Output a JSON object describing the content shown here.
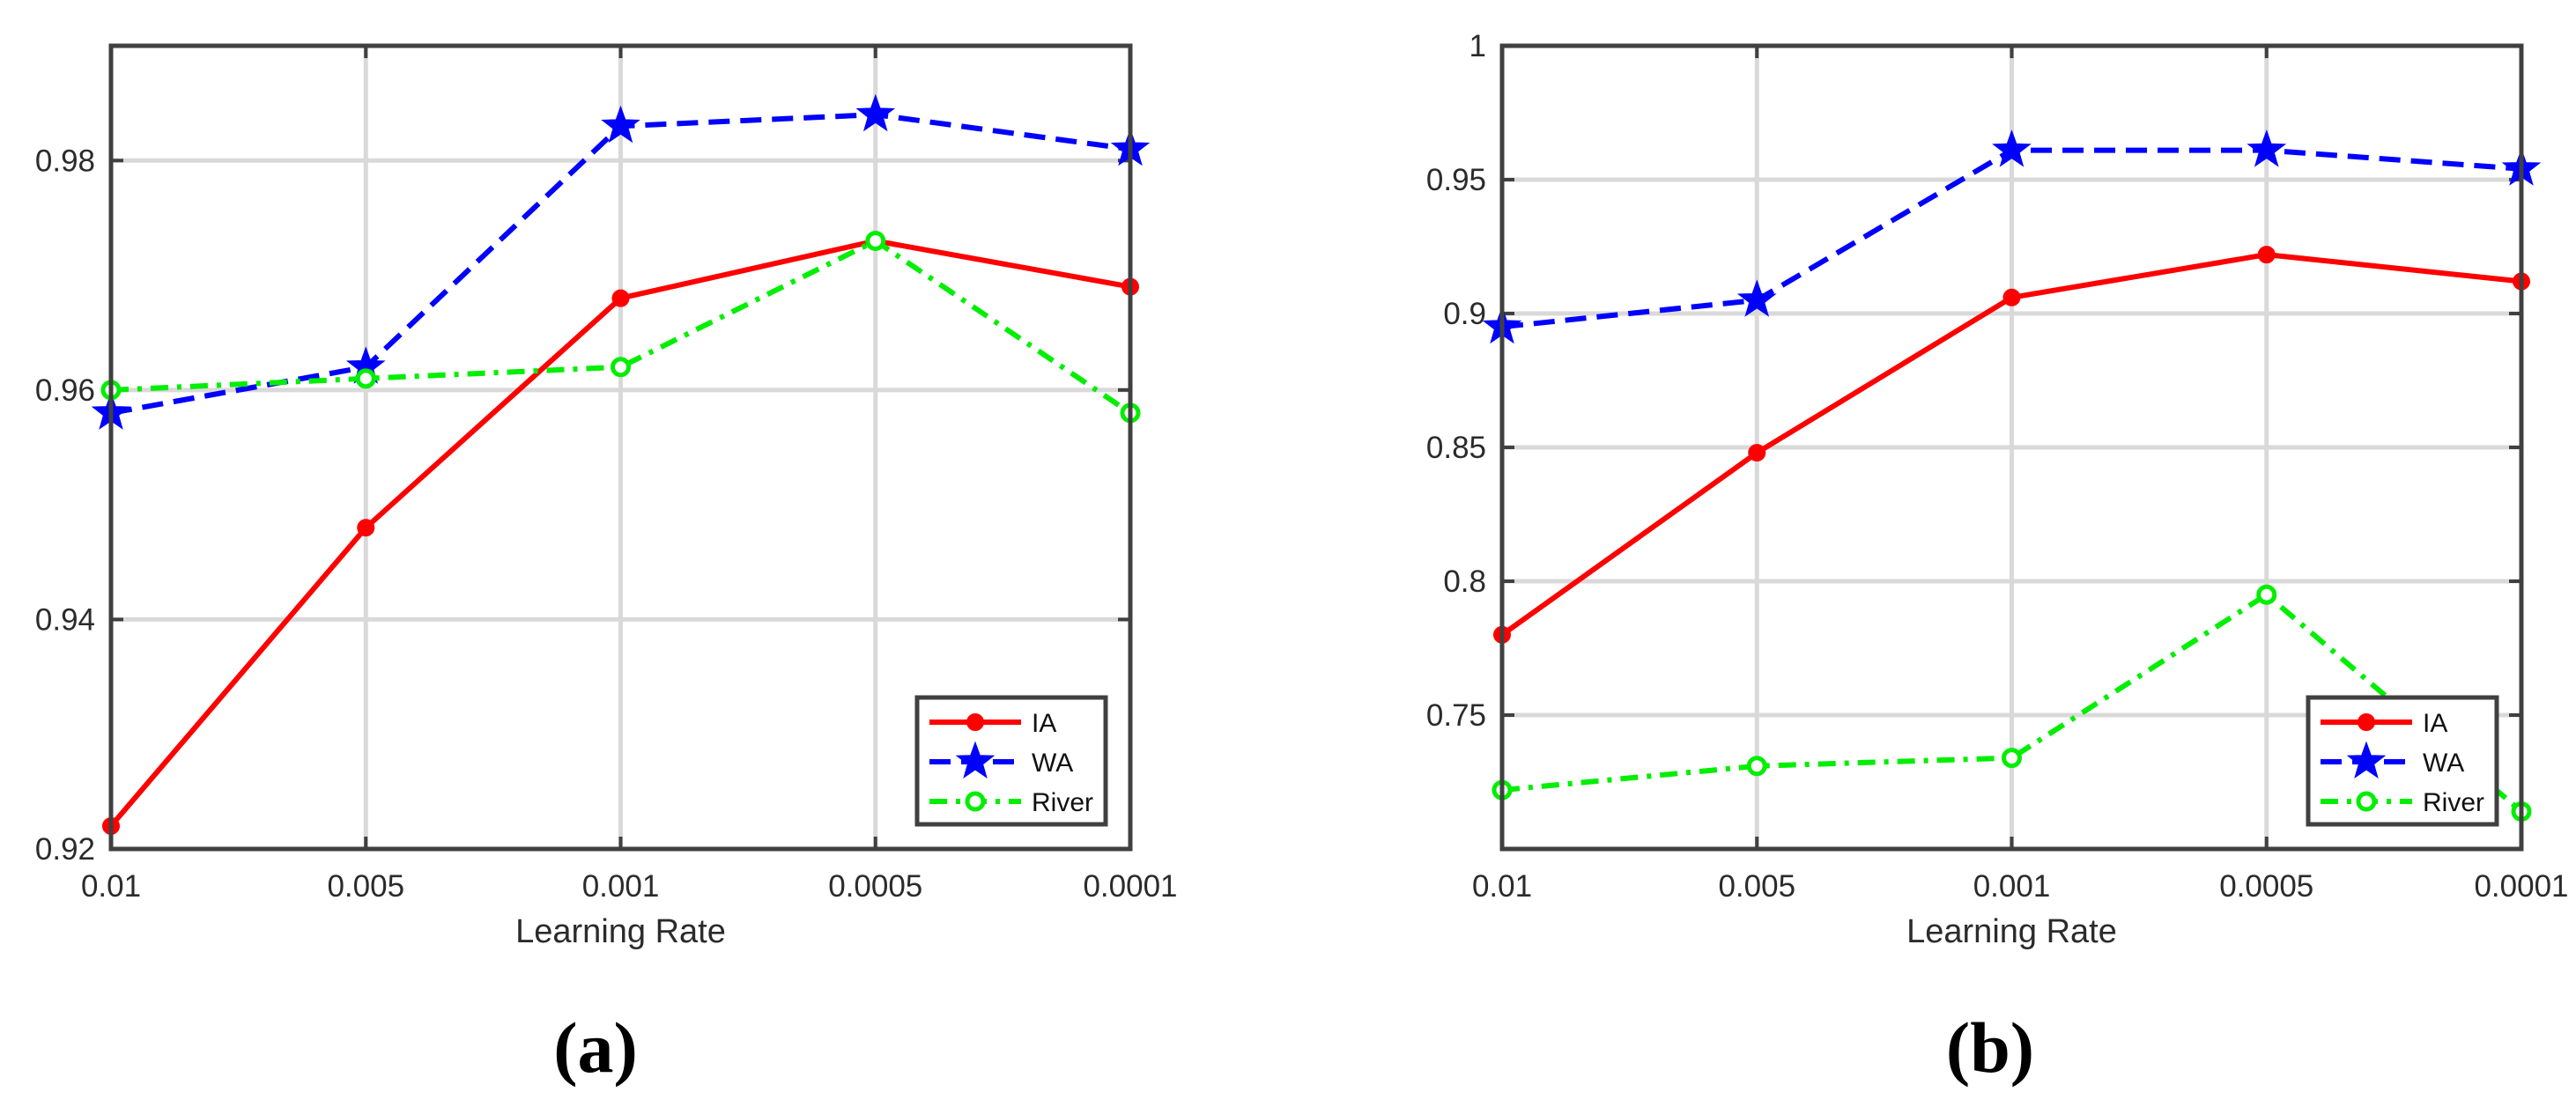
{
  "figure": {
    "panels": [
      {
        "id": "a",
        "label": "(a)",
        "chart_data": {
          "type": "line",
          "categories": [
            "0.01",
            "0.005",
            "0.001",
            "0.0005",
            "0.0001"
          ],
          "xlabel": "Learning Rate",
          "ylabel": "",
          "ylim": [
            0.92,
            0.99
          ],
          "yticks": [
            0.92,
            0.94,
            0.96,
            0.98
          ],
          "ytick_labels": [
            "0.92",
            "0.94",
            "0.96",
            "0.98"
          ],
          "grid": true,
          "legend_position": "bottom-right",
          "series": [
            {
              "name": "IA",
              "color": "#ff0000",
              "dash": "solid",
              "marker": "dot",
              "values": [
                0.922,
                0.948,
                0.968,
                0.973,
                0.969
              ]
            },
            {
              "name": "WA",
              "color": "#0000ff",
              "dash": "dashed",
              "marker": "star",
              "values": [
                0.958,
                0.962,
                0.983,
                0.984,
                0.981
              ]
            },
            {
              "name": "River",
              "color": "#00ee00",
              "dash": "dashdot",
              "marker": "circle",
              "values": [
                0.96,
                0.961,
                0.962,
                0.973,
                0.958
              ]
            }
          ]
        }
      },
      {
        "id": "b",
        "label": "(b)",
        "chart_data": {
          "type": "line",
          "categories": [
            "0.01",
            "0.005",
            "0.001",
            "0.0005",
            "0.0001"
          ],
          "xlabel": "Learning Rate",
          "ylabel": "",
          "ylim": [
            0.7,
            1.0
          ],
          "yticks": [
            0.75,
            0.8,
            0.85,
            0.9,
            0.95,
            1.0
          ],
          "ytick_labels": [
            "0.75",
            "0.8",
            "0.85",
            "0.9",
            "0.95",
            "1"
          ],
          "grid": true,
          "legend_position": "bottom-right",
          "series": [
            {
              "name": "IA",
              "color": "#ff0000",
              "dash": "solid",
              "marker": "dot",
              "values": [
                0.78,
                0.848,
                0.906,
                0.922,
                0.912
              ]
            },
            {
              "name": "WA",
              "color": "#0000ff",
              "dash": "dashed",
              "marker": "star",
              "values": [
                0.895,
                0.905,
                0.961,
                0.961,
                0.954
              ]
            },
            {
              "name": "River",
              "color": "#00ee00",
              "dash": "dashdot",
              "marker": "circle",
              "values": [
                0.722,
                0.731,
                0.734,
                0.795,
                0.714
              ]
            }
          ]
        }
      }
    ]
  }
}
